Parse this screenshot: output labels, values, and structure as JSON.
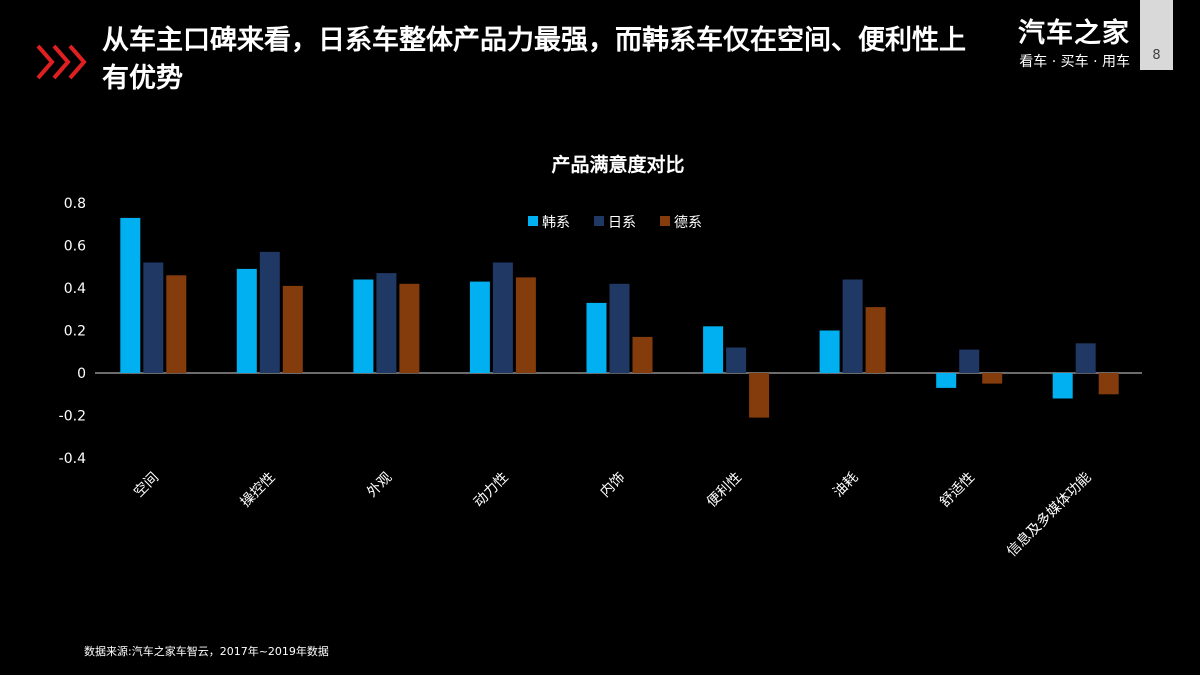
{
  "header": {
    "title": "从车主口碑来看，日系车整体产品力最强，而韩系车仅在空间、便利性上有优势",
    "accent_color": "#e02020",
    "chevron_icon": "triple-chevron-right-icon"
  },
  "brand": {
    "name": "汽车之家",
    "slogan": "看车 · 买车 · 用车"
  },
  "page": {
    "number": "8"
  },
  "footer": {
    "source": "数据来源:汽车之家车智云，2017年~2019年数据"
  },
  "chart_data": {
    "type": "bar",
    "title": "产品满意度对比",
    "categories": [
      "空间",
      "操控性",
      "外观",
      "动力性",
      "内饰",
      "便利性",
      "油耗",
      "舒适性",
      "信息及多媒体功能"
    ],
    "series": [
      {
        "name": "韩系",
        "color": "#00b0f0",
        "values": [
          0.73,
          0.49,
          0.44,
          0.43,
          0.33,
          0.22,
          0.2,
          -0.07,
          -0.12
        ]
      },
      {
        "name": "日系",
        "color": "#1f3864",
        "values": [
          0.52,
          0.57,
          0.47,
          0.52,
          0.42,
          0.12,
          0.44,
          0.11,
          0.14
        ]
      },
      {
        "name": "德系",
        "color": "#843c0c",
        "values": [
          0.46,
          0.41,
          0.42,
          0.45,
          0.17,
          -0.21,
          0.31,
          -0.05,
          -0.1
        ]
      }
    ],
    "yticks": [
      "0.8",
      "0.6",
      "0.4",
      "0.2",
      "0",
      "-0.2",
      "-0.4"
    ],
    "ylim": [
      -0.4,
      0.8
    ],
    "grid": false,
    "legend_position": "top-center"
  }
}
